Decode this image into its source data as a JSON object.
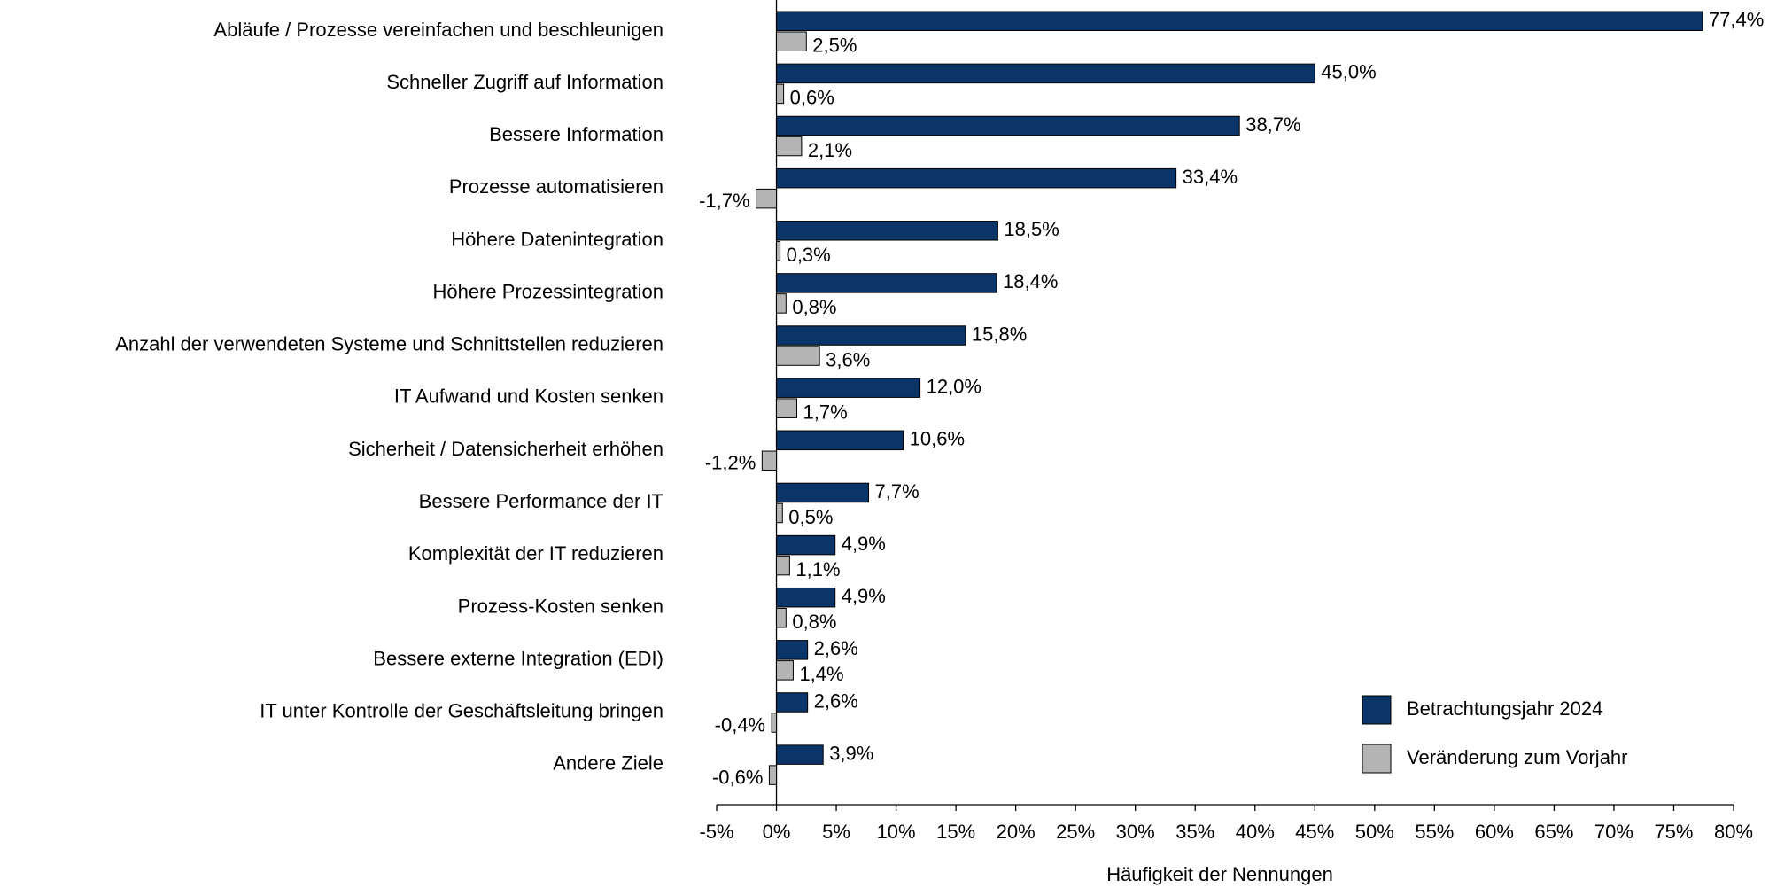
{
  "chart_data": {
    "type": "bar",
    "orientation": "horizontal",
    "x_label": "Häufigkeit der Nennungen",
    "categories": [
      "Abläufe / Prozesse vereinfachen und beschleunigen",
      "Schneller Zugriff auf Information",
      "Bessere Information",
      "Prozesse automatisieren",
      "Höhere Datenintegration",
      "Höhere Prozessintegration",
      "Anzahl der verwendeten Systeme und Schnittstellen reduzieren",
      "IT Aufwand und Kosten senken",
      "Sicherheit / Datensicherheit erhöhen",
      "Bessere Performance der IT",
      "Komplexität der IT reduzieren",
      "Prozess-Kosten senken",
      "Bessere externe Integration (EDI)",
      "IT unter Kontrolle der Geschäftsleitung bringen",
      "Andere Ziele"
    ],
    "series": [
      {
        "name": "Betrachtungsjahr 2024",
        "color": "#0b3468",
        "values": [
          77.4,
          45.0,
          38.7,
          33.4,
          18.5,
          18.4,
          15.8,
          12.0,
          10.6,
          7.7,
          4.9,
          4.9,
          2.6,
          2.6,
          3.9
        ],
        "value_labels": [
          "77,4%",
          "45,0%",
          "38,7%",
          "33,4%",
          "18,5%",
          "18,4%",
          "15,8%",
          "12,0%",
          "10,6%",
          "7,7%",
          "4,9%",
          "4,9%",
          "2,6%",
          "2,6%",
          "3,9%"
        ]
      },
      {
        "name": "Veränderung zum Vorjahr",
        "color": "#b4b4b4",
        "values": [
          2.5,
          0.6,
          2.1,
          -1.7,
          0.3,
          0.8,
          3.6,
          1.7,
          -1.2,
          0.5,
          1.1,
          0.8,
          1.4,
          -0.4,
          -0.6
        ],
        "value_labels": [
          "2,5%",
          "0,6%",
          "2,1%",
          "-1,7%",
          "0,3%",
          "0,8%",
          "3,6%",
          "1,7%",
          "-1,2%",
          "0,5%",
          "1,1%",
          "0,8%",
          "1,4%",
          "-0,4%",
          "-0,6%"
        ]
      }
    ],
    "xlim": [
      -5,
      80
    ],
    "xticks": [
      {
        "value": -5,
        "label": "-5%"
      },
      {
        "value": 0,
        "label": "0%"
      },
      {
        "value": 5,
        "label": "5%"
      },
      {
        "value": 10,
        "label": "10%"
      },
      {
        "value": 15,
        "label": "15%"
      },
      {
        "value": 20,
        "label": "20%"
      },
      {
        "value": 25,
        "label": "25%"
      },
      {
        "value": 30,
        "label": "30%"
      },
      {
        "value": 35,
        "label": "35%"
      },
      {
        "value": 40,
        "label": "40%"
      },
      {
        "value": 45,
        "label": "45%"
      },
      {
        "value": 50,
        "label": "50%"
      },
      {
        "value": 55,
        "label": "55%"
      },
      {
        "value": 60,
        "label": "60%"
      },
      {
        "value": 65,
        "label": "65%"
      },
      {
        "value": 70,
        "label": "70%"
      },
      {
        "value": 75,
        "label": "75%"
      },
      {
        "value": 80,
        "label": "80%"
      }
    ],
    "grid": false,
    "legend": "lower right"
  }
}
